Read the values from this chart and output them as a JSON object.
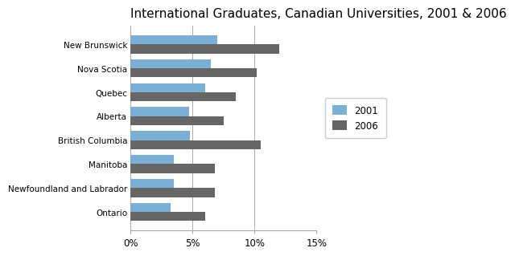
{
  "title": "International Graduates, Canadian Universities, 2001 & 2006",
  "categories": [
    "New Brunswick",
    "Nova Scotia",
    "Quebec",
    "Alberta",
    "British Columbia",
    "Manitoba",
    "Newfoundland and Labrador",
    "Ontario"
  ],
  "values_2001": [
    7.0,
    6.5,
    6.0,
    4.7,
    4.8,
    3.5,
    3.5,
    3.2
  ],
  "values_2006": [
    12.0,
    10.2,
    8.5,
    7.5,
    10.5,
    6.8,
    6.8,
    6.0
  ],
  "color_2001": "#7bafd4",
  "color_2006": "#666666",
  "legend_labels": [
    "2001",
    "2006"
  ],
  "xlim": [
    0,
    15
  ],
  "xticks": [
    0,
    5,
    10,
    15
  ],
  "xticklabels": [
    "0%",
    "5%",
    "10%",
    "15%"
  ],
  "bar_height": 0.38,
  "background_color": "#ffffff",
  "title_fontsize": 11
}
